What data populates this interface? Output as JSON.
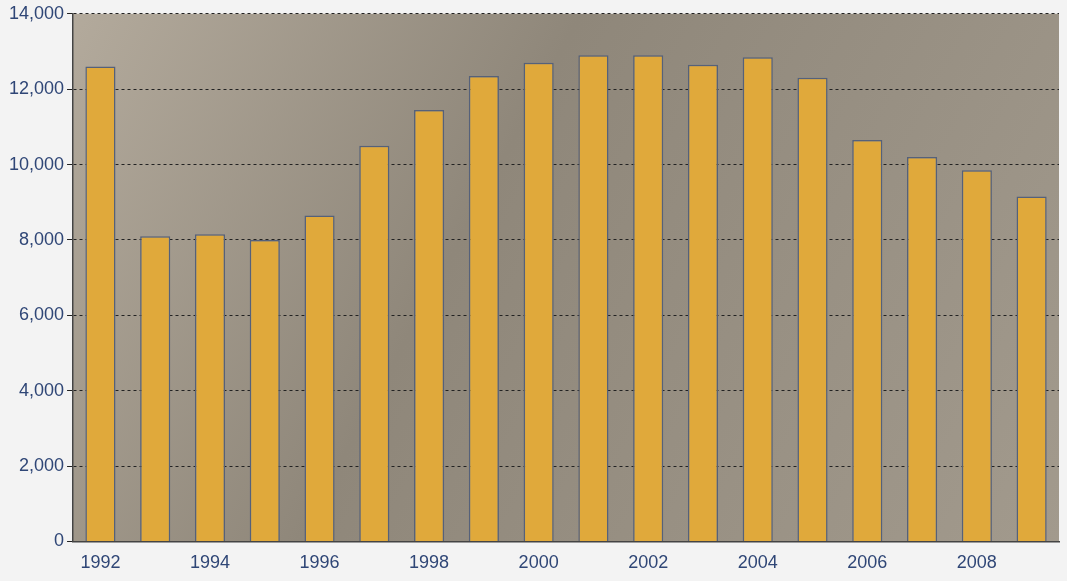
{
  "chart_data": {
    "type": "bar",
    "categories": [
      "1992",
      null,
      "1994",
      null,
      "1996",
      null,
      "1998",
      null,
      "2000",
      null,
      "2002",
      null,
      "2004",
      null,
      "2006",
      null,
      "2008",
      null
    ],
    "values": [
      12600,
      8100,
      8150,
      8000,
      8650,
      10500,
      11450,
      12350,
      12700,
      12900,
      12900,
      12650,
      12850,
      12300,
      10650,
      10200,
      9850,
      9150
    ],
    "color": "#e0a93b",
    "ylim": [
      0,
      14000
    ],
    "yticks": [
      0,
      {
        "value": 2000,
        "label": "2,000"
      },
      {
        "value": 4000,
        "label": "4,000"
      },
      {
        "value": 6000,
        "label": "6,000"
      },
      {
        "value": 8000,
        "label": "8,000"
      },
      {
        "value": 10000,
        "label": "10,000"
      },
      {
        "value": 12000,
        "label": "12,000"
      },
      {
        "value": 14000,
        "label": "14,000"
      }
    ],
    "grid": true
  }
}
